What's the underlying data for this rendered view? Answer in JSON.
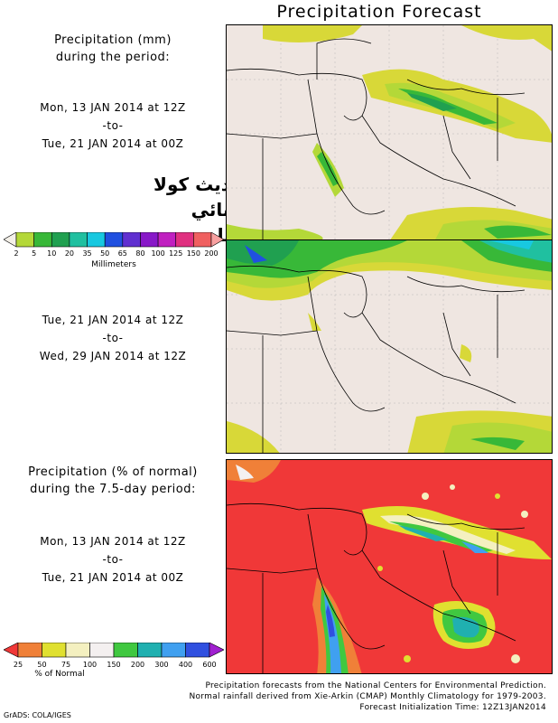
{
  "title": "Precipitation Forecast",
  "panel1": {
    "heading": [
      "Precipitation (mm)",
      "during the period:"
    ],
    "start": "Mon, 13 JAN 2014 at 12Z",
    "sep": "-to-",
    "end": "Tue, 21 JAN 2014 at 00Z"
  },
  "panel2": {
    "start": "Tue, 21 JAN 2014 at 12Z",
    "sep": "-to-",
    "end": "Wed, 29 JAN 2014 at 12Z"
  },
  "panel3": {
    "heading": [
      "Precipitation (% of normal)",
      "during the 7.5-day period:"
    ],
    "start": "Mon, 13 JAN 2014 at 12Z",
    "sep": "-to-",
    "end": "Tue, 21 JAN 2014 at 00Z"
  },
  "overlay_text": [
    "=تحديث كولا المسائي",
    "لامطار"
  ],
  "legend_mm": {
    "ticks": [
      "2",
      "5",
      "10",
      "20",
      "35",
      "50",
      "65",
      "80",
      "100",
      "125",
      "150",
      "200"
    ],
    "unit": "Millimeters",
    "colors": [
      "#d8d838",
      "#b4d838",
      "#38b838",
      "#20a050",
      "#20c0a0",
      "#18c8e0",
      "#2050e0",
      "#6030d0",
      "#8818c8",
      "#c020c0",
      "#e03080",
      "#f06060",
      "#f8a0a0"
    ]
  },
  "legend_pct": {
    "ticks": [
      "25",
      "50",
      "75",
      "100",
      "150",
      "200",
      "300",
      "400",
      "600"
    ],
    "unit": "% of Normal",
    "colors": [
      "#f03838",
      "#f08038",
      "#e0e030",
      "#f4f0c0",
      "#f4f0f0",
      "#40c840",
      "#20b0b0",
      "#40a0f0",
      "#3050e0",
      "#a020d0"
    ]
  },
  "footer": [
    "Precipitation forecasts from the National Centers for Environmental Prediction.",
    "Normal rainfall derived from Xie-Arkin (CMAP) Monthly Climatology for 1979-2003.",
    "Forecast Initialization Time: 12Z13JAN2014"
  ],
  "credit": "GrADS: COLA/IGES",
  "colors": {
    "land": "#efe6e1",
    "red": "#f03838"
  }
}
